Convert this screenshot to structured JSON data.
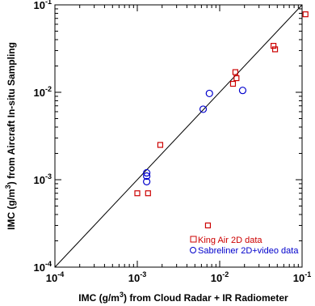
{
  "chart_data": {
    "type": "scatter",
    "title": "",
    "xlabel_parts": {
      "pre": "IMC (g/m",
      "sup": "3",
      "post": ") from Cloud Radar + IR Radiometer"
    },
    "ylabel_parts": {
      "pre": "IMC (g/m",
      "sup": "3",
      "post": ") from Aircraft In-situ Sampling"
    },
    "xscale": "log",
    "yscale": "log",
    "xlim": [
      0.0001,
      0.1
    ],
    "ylim": [
      0.0001,
      0.1
    ],
    "x_ticks": [
      {
        "base": "10",
        "exp": "-4",
        "value": 0.0001
      },
      {
        "base": "10",
        "exp": "-3",
        "value": 0.001
      },
      {
        "base": "10",
        "exp": "-2",
        "value": 0.01
      },
      {
        "base": "10",
        "exp": "-1",
        "value": 0.1
      }
    ],
    "y_ticks": [
      {
        "base": "10",
        "exp": "-4",
        "value": 0.0001
      },
      {
        "base": "10",
        "exp": "-3",
        "value": 0.001
      },
      {
        "base": "10",
        "exp": "-2",
        "value": 0.01
      },
      {
        "base": "10",
        "exp": "-1",
        "value": 0.1
      }
    ],
    "reference_line": "1:1",
    "legend_position": "bottom-right",
    "series": [
      {
        "name": "King Air 2D data",
        "marker": "square",
        "color": "#cc0000",
        "points": [
          {
            "x": 0.001,
            "y": 0.0007
          },
          {
            "x": 0.00135,
            "y": 0.0007
          },
          {
            "x": 0.0019,
            "y": 0.0025
          },
          {
            "x": 0.0072,
            "y": 0.0003
          },
          {
            "x": 0.0145,
            "y": 0.0125
          },
          {
            "x": 0.0155,
            "y": 0.017
          },
          {
            "x": 0.016,
            "y": 0.0145
          },
          {
            "x": 0.045,
            "y": 0.034
          },
          {
            "x": 0.047,
            "y": 0.031
          },
          {
            "x": 0.11,
            "y": 0.078
          }
        ]
      },
      {
        "name": "Sabreliner 2D+video data",
        "marker": "circle",
        "color": "#0000cc",
        "points": [
          {
            "x": 0.0013,
            "y": 0.0012
          },
          {
            "x": 0.0013,
            "y": 0.0011
          },
          {
            "x": 0.0013,
            "y": 0.00095
          },
          {
            "x": 0.0063,
            "y": 0.0064
          },
          {
            "x": 0.0075,
            "y": 0.0097
          },
          {
            "x": 0.019,
            "y": 0.0105
          }
        ]
      }
    ]
  }
}
